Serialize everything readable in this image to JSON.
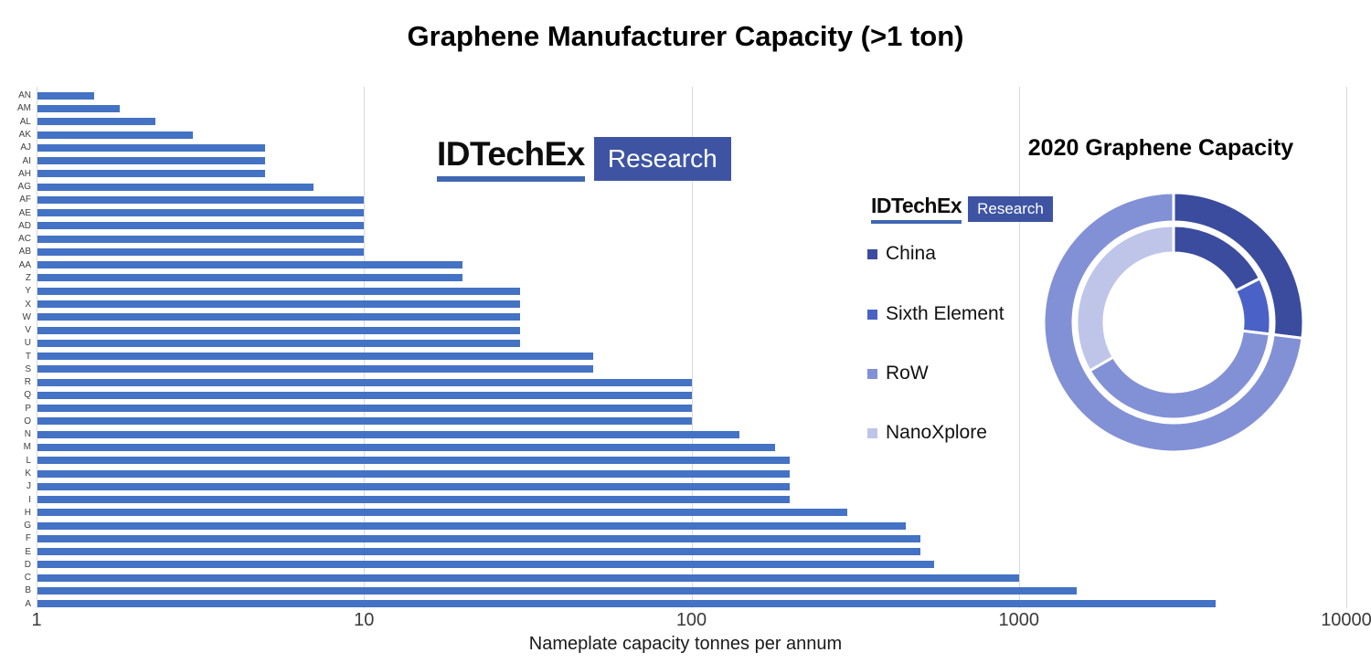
{
  "branding": {
    "name": "IDTechEx",
    "sub": "Research"
  },
  "colors": {
    "bar": "#4472C4",
    "gridline": "#D9D9D9",
    "logo_underline": "#4067B1",
    "logo_box": "#3E54A3"
  },
  "chart_data": [
    {
      "type": "bar",
      "orientation": "horizontal",
      "title": "Graphene Manufacturer Capacity (>1 ton)",
      "xlabel": "Nameplate capacity tonnes per annum",
      "x_scale": "log",
      "xlim": [
        1,
        10000
      ],
      "x_ticks": [
        1,
        10,
        100,
        1000,
        10000
      ],
      "grid": true,
      "bar_color": "#4472C4",
      "categories": [
        "AN",
        "AM",
        "AL",
        "AK",
        "AJ",
        "AI",
        "AH",
        "AG",
        "AF",
        "AE",
        "AD",
        "AC",
        "AB",
        "AA",
        "Z",
        "Y",
        "X",
        "W",
        "V",
        "U",
        "T",
        "S",
        "R",
        "Q",
        "P",
        "O",
        "N",
        "M",
        "L",
        "K",
        "J",
        "I",
        "H",
        "G",
        "F",
        "E",
        "D",
        "C",
        "B",
        "A"
      ],
      "values": [
        1.5,
        1.8,
        2.3,
        3,
        5,
        5,
        5,
        7,
        10,
        10,
        10,
        10,
        10,
        20,
        20,
        30,
        30,
        30,
        30,
        30,
        50,
        50,
        100,
        100,
        100,
        100,
        140,
        180,
        200,
        200,
        200,
        200,
        300,
        450,
        500,
        500,
        550,
        1000,
        1500,
        4000
      ]
    },
    {
      "type": "pie",
      "subtype": "doughnut-two-ring",
      "title": "2020 Graphene Capacity",
      "legend_position": "left",
      "legend": [
        "China",
        "Sixth Element",
        "RoW",
        "NanoXplore"
      ],
      "colors": {
        "China": "#3B4C9F",
        "Sixth Element": "#4A62C7",
        "RoW": "#8290D6",
        "NanoXplore": "#BEC5E9"
      },
      "radii": {
        "outer": [
          110,
          142
        ],
        "inner": [
          76,
          106
        ]
      },
      "rings": {
        "outer": [
          {
            "name": "China",
            "start_deg": 0,
            "end_deg": 97,
            "pct": 27
          },
          {
            "name": "RoW",
            "start_deg": 97,
            "end_deg": 360,
            "pct": 73
          }
        ],
        "inner": [
          {
            "name": "China",
            "start_deg": 0,
            "end_deg": 63,
            "pct": 17.5
          },
          {
            "name": "Sixth Element",
            "start_deg": 63,
            "end_deg": 97,
            "pct": 9.5
          },
          {
            "name": "RoW",
            "start_deg": 97,
            "end_deg": 240,
            "pct": 39.7
          },
          {
            "name": "NanoXplore",
            "start_deg": 240,
            "end_deg": 360,
            "pct": 33.3
          }
        ]
      }
    }
  ]
}
